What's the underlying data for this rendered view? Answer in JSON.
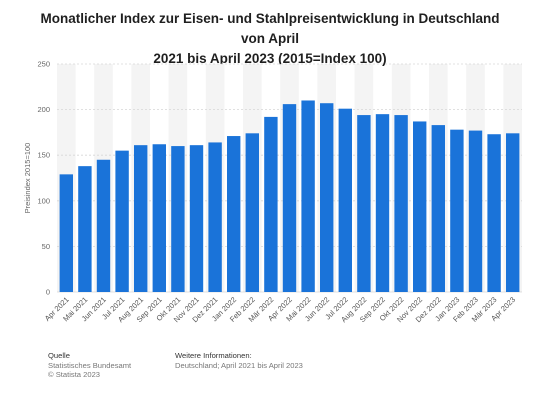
{
  "title_line1": "Monatlicher Index zur Eisen- und Stahlpreisentwicklung in Deutschland von April",
  "title_line2": "2021 bis April 2023 (2015=Index 100)",
  "footer": {
    "source_label": "Quelle",
    "source_lines": [
      "Statistisches Bundesamt",
      "© Statista 2023"
    ],
    "info_label": "Weitere Informationen:",
    "info_lines": [
      "Deutschland; April 2021 bis April 2023"
    ]
  },
  "chart_data": {
    "type": "bar",
    "title": "Monatlicher Index zur Eisen- und Stahlpreisentwicklung in Deutschland von April 2021 bis April 2023 (2015=Index 100)",
    "xlabel": "",
    "ylabel": "Preisindex 2015=100",
    "ylim": [
      0,
      250
    ],
    "yticks": [
      0,
      50,
      100,
      150,
      200,
      250
    ],
    "grid": true,
    "bar_color": "#1a73d9",
    "categories": [
      "Apr 2021",
      "Mai 2021",
      "Jun 2021",
      "Jul 2021",
      "Aug 2021",
      "Sep 2021",
      "Okt 2021",
      "Nov 2021",
      "Dez 2021",
      "Jan 2022",
      "Feb 2022",
      "Mär 2022",
      "Apr 2022",
      "Mai 2022",
      "Jun 2022",
      "Jul 2022",
      "Aug 2022",
      "Sep 2022",
      "Okt 2022",
      "Nov 2022",
      "Dez 2022",
      "Jan 2023",
      "Feb 2023",
      "Mär 2023",
      "Apr 2023"
    ],
    "values": [
      129,
      138,
      145,
      155,
      161,
      162,
      160,
      161,
      164,
      171,
      174,
      192,
      206,
      210,
      207,
      201,
      194,
      195,
      194,
      187,
      183,
      178,
      177,
      173,
      174
    ]
  }
}
